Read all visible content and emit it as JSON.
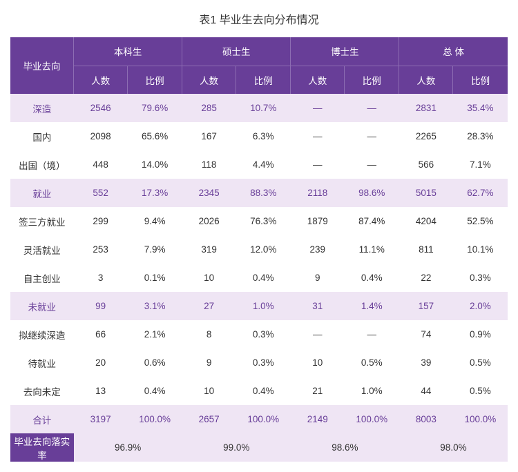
{
  "title": "表1  毕业生去向分布情况",
  "colors": {
    "header_bg": "#683e98",
    "header_text": "#ffffff",
    "header_border": "#8d6db3",
    "highlight_bg": "#efe5f4",
    "highlight_text": "#683e98",
    "body_text": "#333333"
  },
  "typography": {
    "title_fontsize": 16,
    "cell_fontsize": 13.5,
    "font_family": "Microsoft YaHei"
  },
  "header": {
    "row_label": "毕业去向",
    "groups": [
      "本科生",
      "硕士生",
      "博士生",
      "总  体"
    ],
    "sub": [
      "人数",
      "比例"
    ]
  },
  "rows": [
    {
      "type": "hl",
      "label": "深造",
      "cells": [
        "2546",
        "79.6%",
        "285",
        "10.7%",
        "—",
        "—",
        "2831",
        "35.4%"
      ]
    },
    {
      "type": "n",
      "label": "国内",
      "cells": [
        "2098",
        "65.6%",
        "167",
        "6.3%",
        "—",
        "—",
        "2265",
        "28.3%"
      ]
    },
    {
      "type": "n",
      "label": "出国（境）",
      "cells": [
        "448",
        "14.0%",
        "118",
        "4.4%",
        "—",
        "—",
        "566",
        "7.1%"
      ]
    },
    {
      "type": "hl",
      "label": "就业",
      "cells": [
        "552",
        "17.3%",
        "2345",
        "88.3%",
        "2118",
        "98.6%",
        "5015",
        "62.7%"
      ]
    },
    {
      "type": "n",
      "label": "签三方就业",
      "cells": [
        "299",
        "9.4%",
        "2026",
        "76.3%",
        "1879",
        "87.4%",
        "4204",
        "52.5%"
      ]
    },
    {
      "type": "n",
      "label": "灵活就业",
      "cells": [
        "253",
        "7.9%",
        "319",
        "12.0%",
        "239",
        "11.1%",
        "811",
        "10.1%"
      ]
    },
    {
      "type": "n",
      "label": "自主创业",
      "cells": [
        "3",
        "0.1%",
        "10",
        "0.4%",
        "9",
        "0.4%",
        "22",
        "0.3%"
      ]
    },
    {
      "type": "hl",
      "label": "未就业",
      "cells": [
        "99",
        "3.1%",
        "27",
        "1.0%",
        "31",
        "1.4%",
        "157",
        "2.0%"
      ]
    },
    {
      "type": "n",
      "label": "拟继续深造",
      "cells": [
        "66",
        "2.1%",
        "8",
        "0.3%",
        "—",
        "—",
        "74",
        "0.9%"
      ]
    },
    {
      "type": "n",
      "label": "待就业",
      "cells": [
        "20",
        "0.6%",
        "9",
        "0.3%",
        "10",
        "0.5%",
        "39",
        "0.5%"
      ]
    },
    {
      "type": "n",
      "label": "去向未定",
      "cells": [
        "13",
        "0.4%",
        "10",
        "0.4%",
        "21",
        "1.0%",
        "44",
        "0.5%"
      ]
    },
    {
      "type": "hl",
      "label": "合计",
      "cells": [
        "3197",
        "100.0%",
        "2657",
        "100.0%",
        "2149",
        "100.0%",
        "8003",
        "100.0%"
      ]
    }
  ],
  "footer": {
    "label": "毕业去向落实率",
    "values": [
      "96.9%",
      "99.0%",
      "98.6%",
      "98.0%"
    ]
  }
}
